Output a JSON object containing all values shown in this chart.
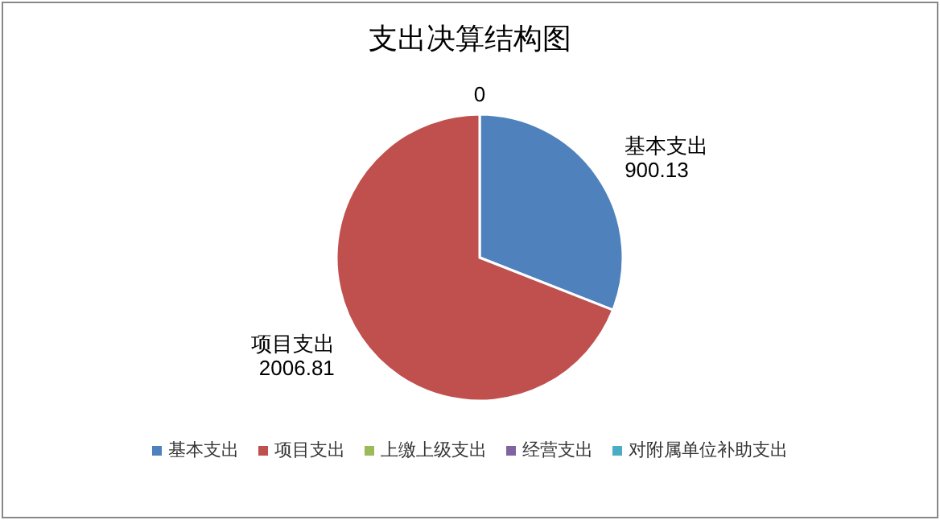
{
  "chart_data": {
    "type": "pie",
    "title": "支出决算结构图",
    "categories": [
      "基本支出",
      "项目支出",
      "上缴上级支出",
      "经营支出",
      "对附属单位补助支出"
    ],
    "values": [
      900.13,
      2006.81,
      0,
      0,
      0
    ],
    "colors": [
      "#4f81bd",
      "#c0504d",
      "#9bbb59",
      "#8064a2",
      "#4bacc6"
    ],
    "value_labels": [
      "基本支出\n900.13",
      "项目支出\n2006.81",
      "0",
      null,
      null
    ],
    "legend": "bottom"
  }
}
